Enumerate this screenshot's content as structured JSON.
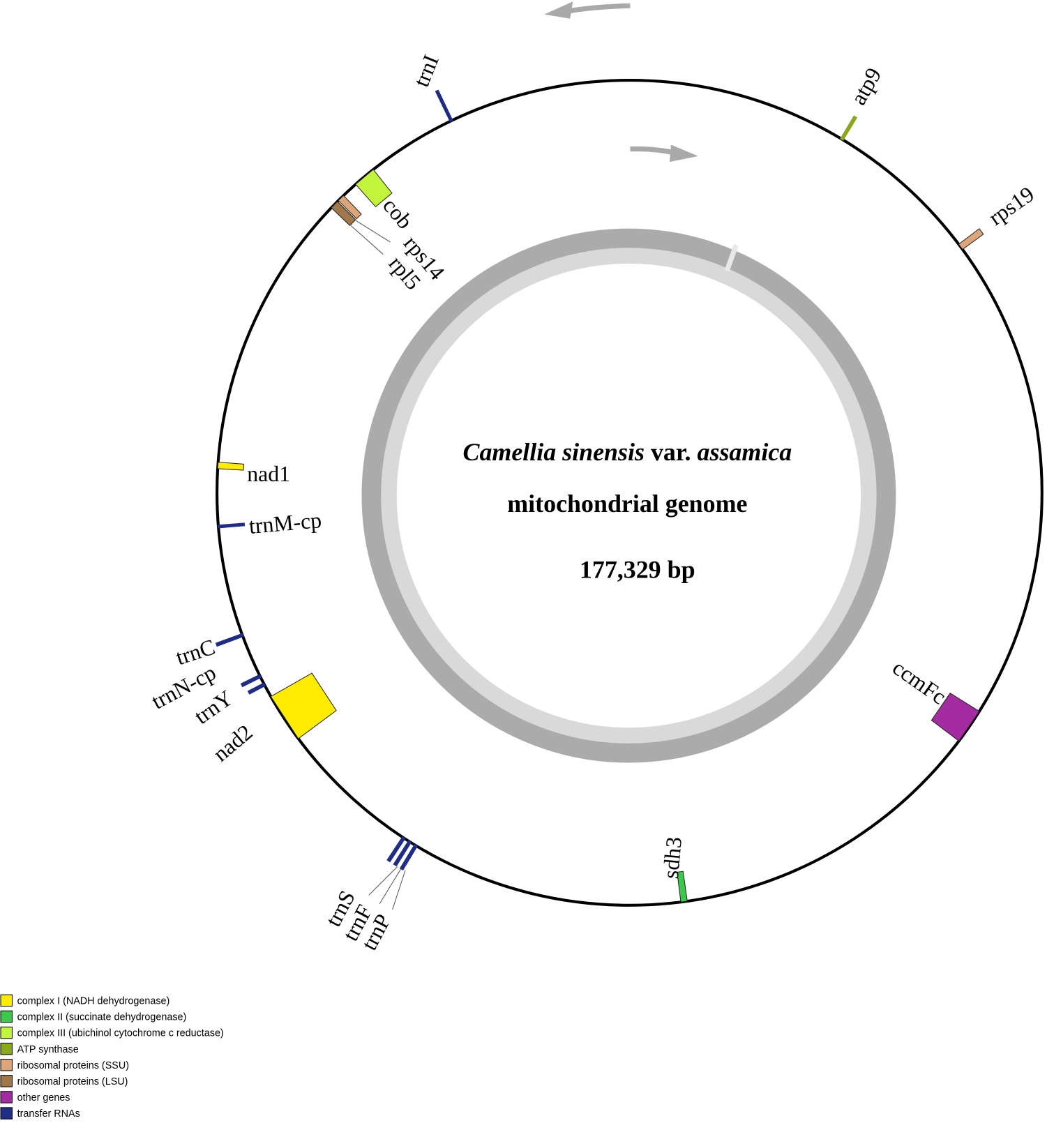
{
  "title": {
    "parts": [
      "Camellia sinensis",
      "var.",
      "assamica"
    ]
  },
  "subtitle": "mitochondrial genome",
  "genome_size": "177,329 bp",
  "genes": [
    {
      "name": "trnI",
      "color": "#1f2d86"
    },
    {
      "name": "atp9",
      "color": "#8aa81e"
    },
    {
      "name": "rps19",
      "color": "#dca67a"
    },
    {
      "name": "ccmFc",
      "color": "#a32ca0"
    },
    {
      "name": "sdh3",
      "color": "#3cc84b"
    },
    {
      "name": "trnS",
      "color": "#1f2d86"
    },
    {
      "name": "trnF",
      "color": "#1f2d86"
    },
    {
      "name": "trnP",
      "color": "#1f2d86"
    },
    {
      "name": "nad2",
      "color": "#ffec00"
    },
    {
      "name": "trnY",
      "color": "#1f2d86"
    },
    {
      "name": "trnN-cp",
      "color": "#1f2d86"
    },
    {
      "name": "trnC",
      "color": "#1f2d86"
    },
    {
      "name": "trnM-cp",
      "color": "#1f2d86"
    },
    {
      "name": "nad1",
      "color": "#ffec00"
    },
    {
      "name": "rpl5",
      "color": "#a0784a"
    },
    {
      "name": "rps14",
      "color": "#dca67a"
    },
    {
      "name": "cob",
      "color": "#c2f53c"
    }
  ],
  "legend": [
    {
      "label": "complex I (NADH dehydrogenase)",
      "color": "#ffec00"
    },
    {
      "label": "complex II (succinate dehydrogenase)",
      "color": "#3cc84b"
    },
    {
      "label": "complex III (ubichinol cytochrome c reductase)",
      "color": "#c2f53c"
    },
    {
      "label": "ATP synthase",
      "color": "#8aa81e"
    },
    {
      "label": "ribosomal proteins (SSU)",
      "color": "#dca67a"
    },
    {
      "label": "ribosomal proteins (LSU)",
      "color": "#a0784a"
    },
    {
      "label": "other genes",
      "color": "#a32ca0"
    },
    {
      "label": "transfer RNAs",
      "color": "#1f2d86"
    }
  ]
}
